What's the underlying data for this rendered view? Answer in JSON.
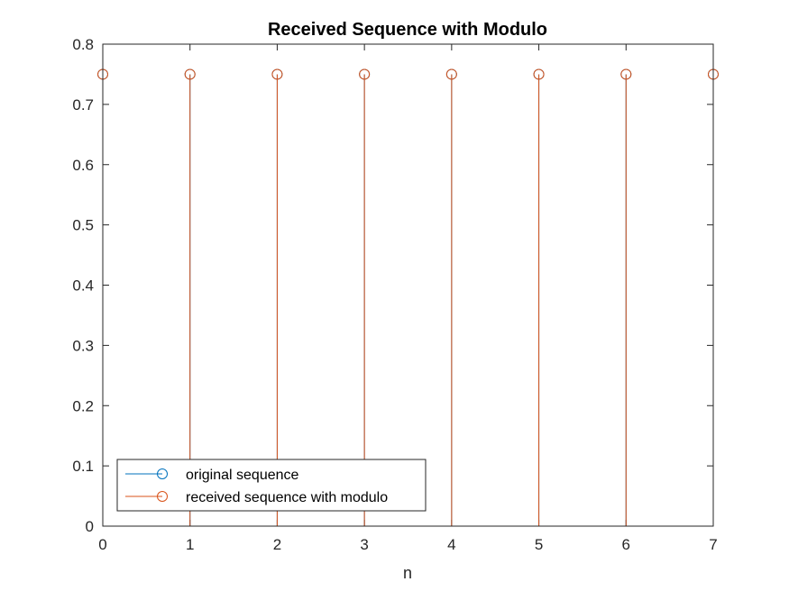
{
  "chart_data": {
    "type": "stem",
    "title": "Received Sequence with Modulo",
    "xlabel": "n",
    "ylabel": "",
    "xlim": [
      0,
      7
    ],
    "ylim": [
      0,
      0.8
    ],
    "xticks": [
      "0",
      "1",
      "2",
      "3",
      "4",
      "5",
      "6",
      "7"
    ],
    "yticks": [
      "0",
      "0.1",
      "0.2",
      "0.3",
      "0.4",
      "0.5",
      "0.6",
      "0.7",
      "0.8"
    ],
    "grid": false,
    "legend_position": "bottom-left",
    "series": [
      {
        "name": "original sequence",
        "color": "#0072BD",
        "marker": "circle",
        "x": [
          0,
          1,
          2,
          3,
          4,
          5,
          6,
          7
        ],
        "values": [
          0.75,
          0.75,
          0.75,
          0.75,
          0.75,
          0.75,
          0.75,
          0.75
        ]
      },
      {
        "name": "received sequence with modulo",
        "color": "#D95319",
        "marker": "circle",
        "x": [
          0,
          1,
          2,
          3,
          4,
          5,
          6,
          7
        ],
        "values": [
          0.75,
          0.75,
          0.75,
          0.75,
          0.75,
          0.75,
          0.75,
          0.75
        ]
      }
    ]
  }
}
